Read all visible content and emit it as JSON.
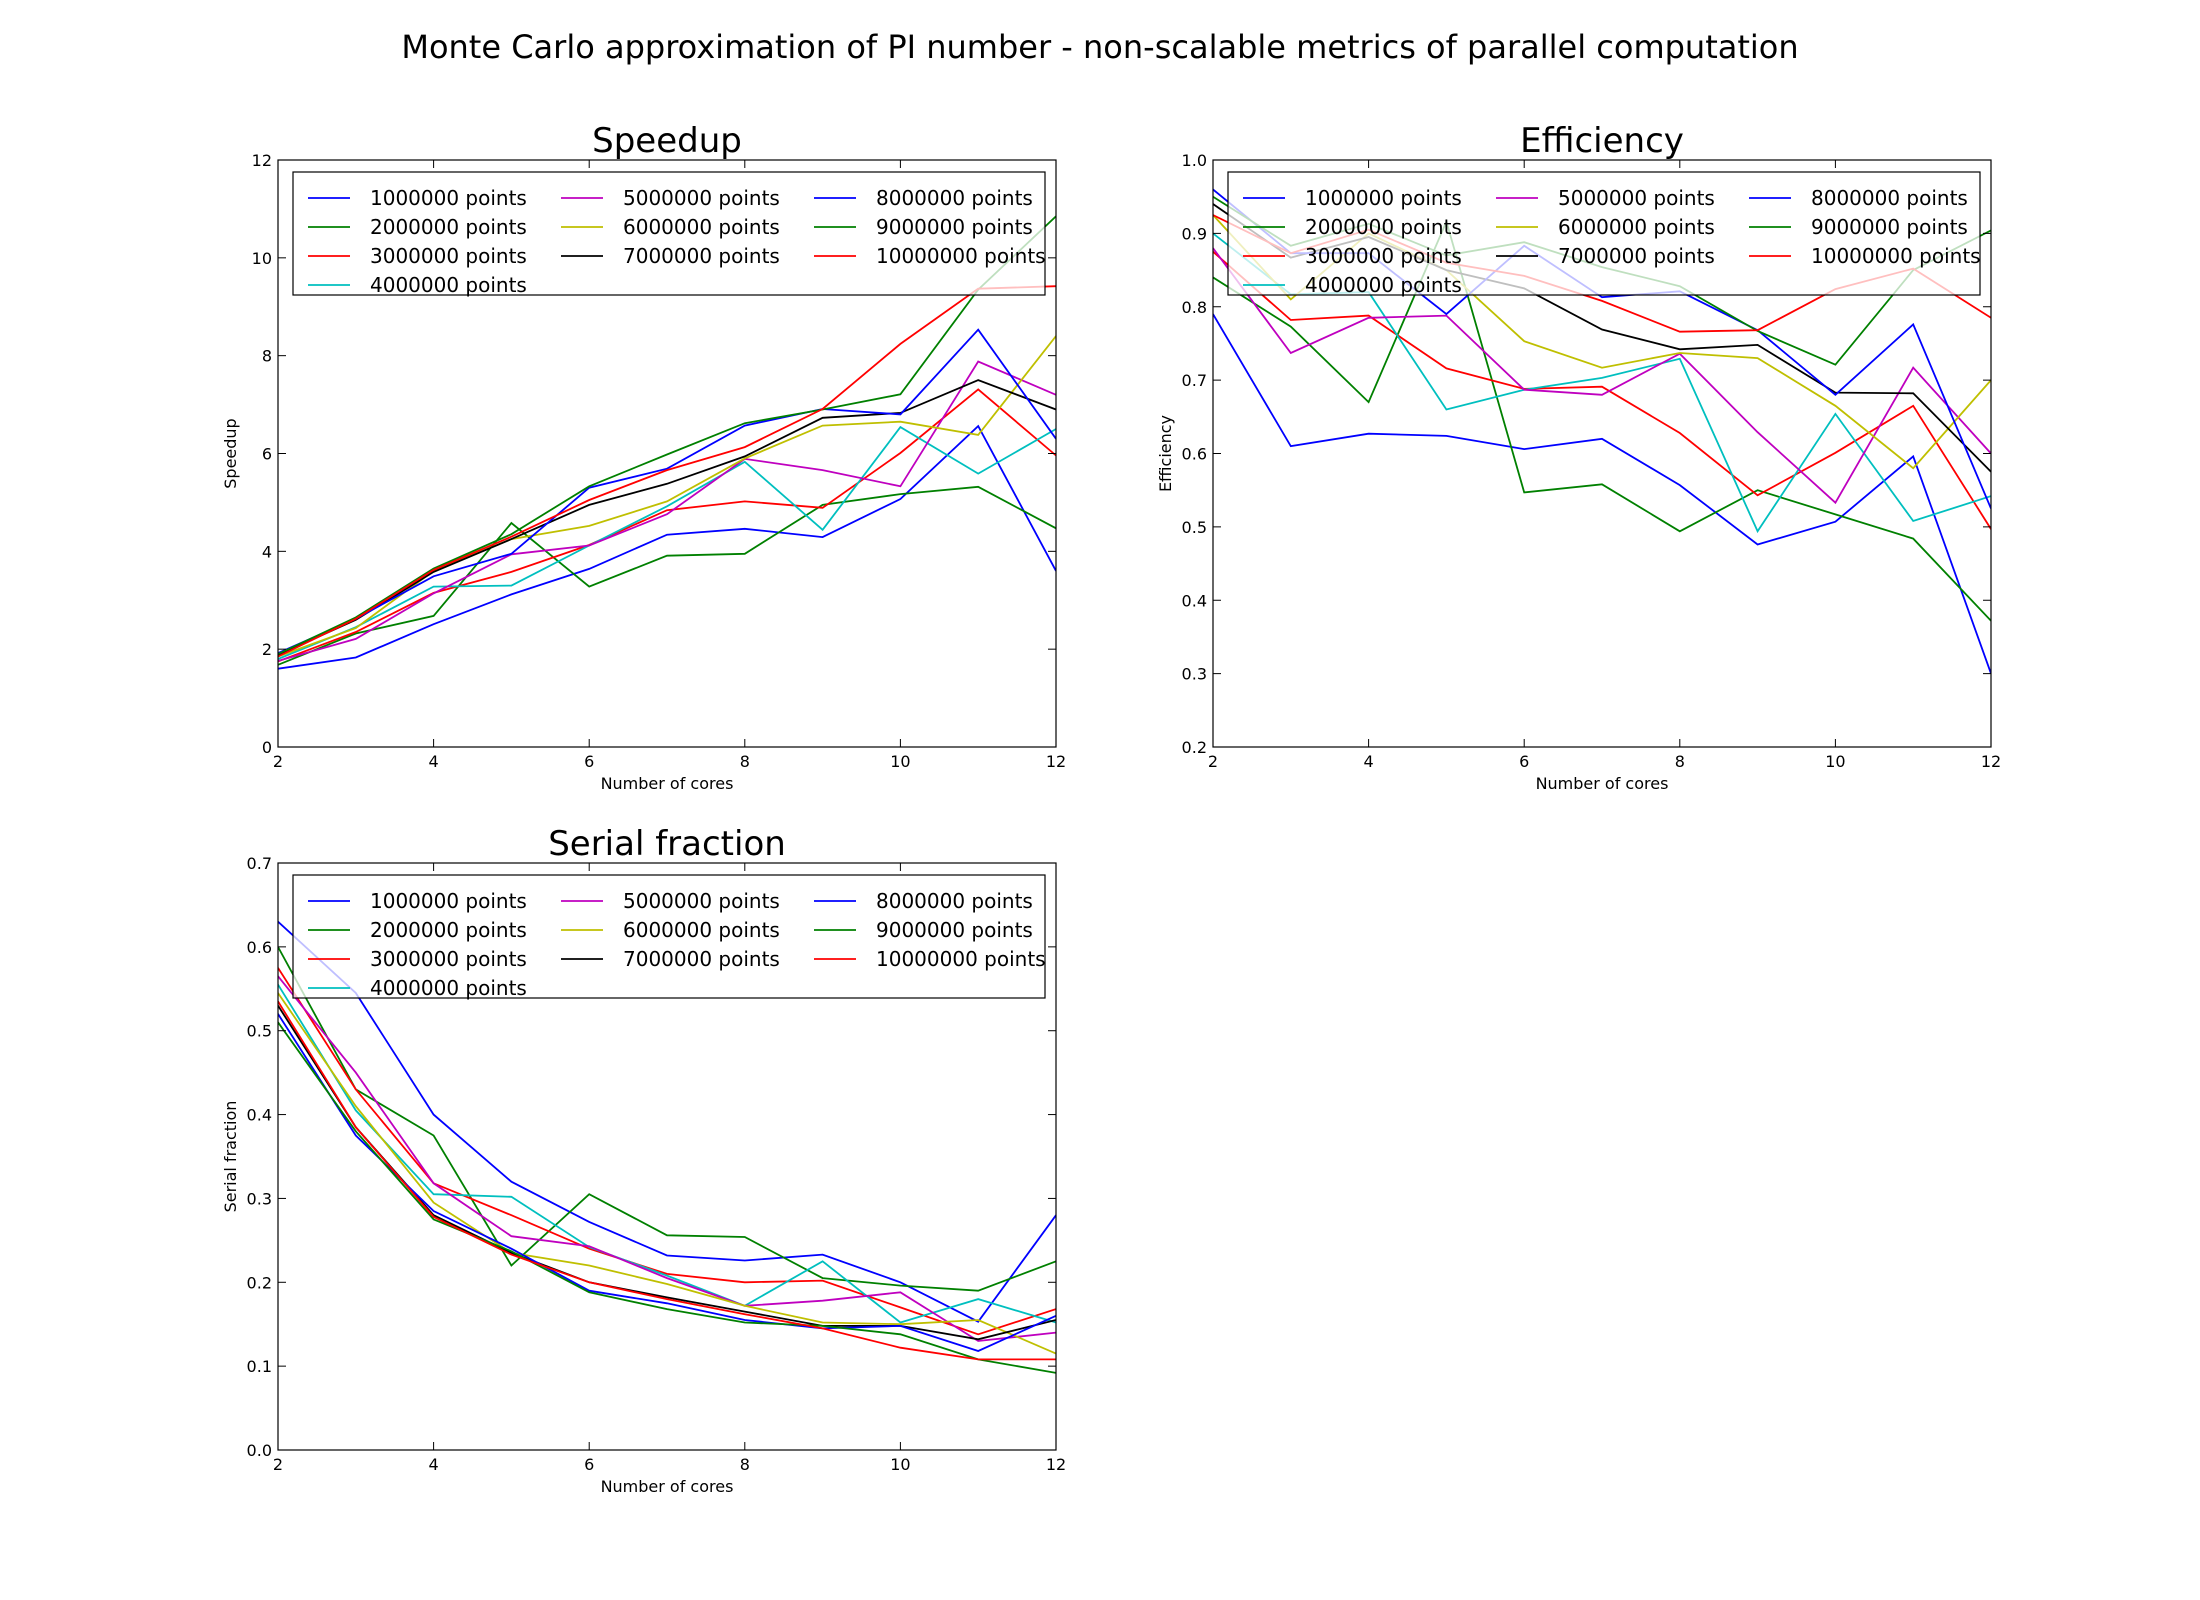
{
  "figure": {
    "suptitle": "Monte Carlo approximation of PI number - non-scalable metrics of parallel computation"
  },
  "series_colors": [
    "#0000ff",
    "#008000",
    "#ff0000",
    "#00bfbf",
    "#bf00bf",
    "#bfbf00",
    "#000000",
    "#0000ff",
    "#008000",
    "#ff0000"
  ],
  "chart_data": [
    {
      "type": "line",
      "title": "Speedup",
      "xlabel": "Number of cores",
      "ylabel": "Speedup",
      "xlim": [
        2,
        12
      ],
      "ylim": [
        0,
        12
      ],
      "xticks": [
        2,
        4,
        6,
        8,
        10,
        12
      ],
      "yticks": [
        0,
        2,
        4,
        6,
        8,
        10,
        12
      ],
      "ytick_labels": [
        "0",
        "2",
        "4",
        "6",
        "8",
        "10",
        "12"
      ],
      "grid": false,
      "legend_position": "top",
      "x": [
        2,
        3,
        4,
        5,
        6,
        7,
        8,
        9,
        10,
        11,
        12
      ],
      "series": [
        {
          "name": "1000000 points",
          "values": [
            1.6,
            1.83,
            2.51,
            3.12,
            3.64,
            4.34,
            4.46,
            4.29,
            5.07,
            6.56,
            3.6
          ]
        },
        {
          "name": "2000000 points",
          "values": [
            1.68,
            2.32,
            2.68,
            4.58,
            3.28,
            3.91,
            3.95,
            4.95,
            5.17,
            5.32,
            4.47
          ]
        },
        {
          "name": "3000000 points",
          "values": [
            1.75,
            2.35,
            3.15,
            3.58,
            4.13,
            4.84,
            5.02,
            4.89,
            6.01,
            7.31,
            5.96
          ]
        },
        {
          "name": "4000000 points",
          "values": [
            1.8,
            2.45,
            3.28,
            3.3,
            4.12,
            4.92,
            5.83,
            4.44,
            6.54,
            5.59,
            6.5
          ]
        },
        {
          "name": "5000000 points",
          "values": [
            1.76,
            2.21,
            3.14,
            3.94,
            4.12,
            4.76,
            5.89,
            5.66,
            5.33,
            7.88,
            7.2
          ]
        },
        {
          "name": "6000000 points",
          "values": [
            1.85,
            2.43,
            3.6,
            4.25,
            4.52,
            5.02,
            5.9,
            6.57,
            6.65,
            6.38,
            8.4
          ]
        },
        {
          "name": "7000000 points",
          "values": [
            1.88,
            2.6,
            3.58,
            4.25,
            4.95,
            5.38,
            5.94,
            6.73,
            6.83,
            7.5,
            6.9
          ]
        },
        {
          "name": "8000000 points",
          "values": [
            1.92,
            2.62,
            3.49,
            3.95,
            5.3,
            5.69,
            6.57,
            6.91,
            6.8,
            8.53,
            6.3
          ]
        },
        {
          "name": "9000000 points",
          "values": [
            1.9,
            2.65,
            3.65,
            4.35,
            5.33,
            5.98,
            6.62,
            6.9,
            7.21,
            9.35,
            10.85
          ]
        },
        {
          "name": "10000000 points",
          "values": [
            1.85,
            2.62,
            3.62,
            4.3,
            5.05,
            5.66,
            6.13,
            6.91,
            8.24,
            9.37,
            9.42
          ]
        }
      ]
    },
    {
      "type": "line",
      "title": "Efficiency",
      "xlabel": "Number of cores",
      "ylabel": "Efficiency",
      "xlim": [
        2,
        12
      ],
      "ylim": [
        0.2,
        1.0
      ],
      "xticks": [
        2,
        4,
        6,
        8,
        10,
        12
      ],
      "yticks": [
        0.2,
        0.3,
        0.4,
        0.5,
        0.6,
        0.7,
        0.8,
        0.9,
        1.0
      ],
      "ytick_labels": [
        "0.2",
        "0.3",
        "0.4",
        "0.5",
        "0.6",
        "0.7",
        "0.8",
        "0.9",
        "1.0"
      ],
      "grid": false,
      "legend_position": "top",
      "x": [
        2,
        3,
        4,
        5,
        6,
        7,
        8,
        9,
        10,
        11,
        12
      ],
      "series": [
        {
          "name": "1000000 points",
          "values": [
            0.79,
            0.61,
            0.627,
            0.624,
            0.606,
            0.62,
            0.557,
            0.476,
            0.507,
            0.596,
            0.3
          ]
        },
        {
          "name": "2000000 points",
          "values": [
            0.84,
            0.773,
            0.67,
            0.916,
            0.547,
            0.558,
            0.494,
            0.55,
            0.517,
            0.484,
            0.372
          ]
        },
        {
          "name": "3000000 points",
          "values": [
            0.875,
            0.782,
            0.788,
            0.716,
            0.688,
            0.691,
            0.628,
            0.543,
            0.601,
            0.665,
            0.497
          ]
        },
        {
          "name": "4000000 points",
          "values": [
            0.9,
            0.817,
            0.82,
            0.66,
            0.687,
            0.703,
            0.729,
            0.494,
            0.654,
            0.508,
            0.542
          ]
        },
        {
          "name": "5000000 points",
          "values": [
            0.88,
            0.737,
            0.785,
            0.788,
            0.687,
            0.68,
            0.736,
            0.629,
            0.533,
            0.717,
            0.6
          ]
        },
        {
          "name": "6000000 points",
          "values": [
            0.925,
            0.81,
            0.9,
            0.85,
            0.753,
            0.717,
            0.737,
            0.73,
            0.665,
            0.58,
            0.7
          ]
        },
        {
          "name": "7000000 points",
          "values": [
            0.94,
            0.867,
            0.895,
            0.85,
            0.825,
            0.769,
            0.742,
            0.748,
            0.683,
            0.682,
            0.575
          ]
        },
        {
          "name": "8000000 points",
          "values": [
            0.96,
            0.873,
            0.873,
            0.79,
            0.883,
            0.813,
            0.821,
            0.768,
            0.68,
            0.776,
            0.525
          ]
        },
        {
          "name": "9000000 points",
          "values": [
            0.95,
            0.883,
            0.913,
            0.87,
            0.888,
            0.854,
            0.828,
            0.767,
            0.721,
            0.85,
            0.904
          ]
        },
        {
          "name": "10000000 points",
          "values": [
            0.925,
            0.873,
            0.905,
            0.86,
            0.842,
            0.808,
            0.766,
            0.768,
            0.824,
            0.852,
            0.785
          ]
        }
      ]
    },
    {
      "type": "line",
      "title": "Serial fraction",
      "xlabel": "Number of cores",
      "ylabel": "Serial fraction",
      "xlim": [
        2,
        12
      ],
      "ylim": [
        0.0,
        0.7
      ],
      "xticks": [
        2,
        4,
        6,
        8,
        10,
        12
      ],
      "yticks": [
        0.0,
        0.1,
        0.2,
        0.3,
        0.4,
        0.5,
        0.6,
        0.7
      ],
      "ytick_labels": [
        "0.0",
        "0.1",
        "0.2",
        "0.3",
        "0.4",
        "0.5",
        "0.6",
        "0.7"
      ],
      "grid": false,
      "legend_position": "top",
      "x": [
        2,
        3,
        4,
        5,
        6,
        7,
        8,
        9,
        10,
        11,
        12
      ],
      "series": [
        {
          "name": "1000000 points",
          "values": [
            0.63,
            0.545,
            0.4,
            0.32,
            0.272,
            0.232,
            0.226,
            0.233,
            0.2,
            0.153,
            0.28
          ]
        },
        {
          "name": "2000000 points",
          "values": [
            0.6,
            0.43,
            0.375,
            0.22,
            0.305,
            0.256,
            0.254,
            0.205,
            0.196,
            0.19,
            0.225
          ]
        },
        {
          "name": "3000000 points",
          "values": [
            0.575,
            0.43,
            0.318,
            0.28,
            0.24,
            0.21,
            0.2,
            0.202,
            0.17,
            0.138,
            0.168
          ]
        },
        {
          "name": "4000000 points",
          "values": [
            0.555,
            0.405,
            0.305,
            0.302,
            0.242,
            0.208,
            0.172,
            0.225,
            0.152,
            0.18,
            0.152
          ]
        },
        {
          "name": "5000000 points",
          "values": [
            0.565,
            0.45,
            0.318,
            0.255,
            0.243,
            0.205,
            0.172,
            0.178,
            0.188,
            0.13,
            0.14
          ]
        },
        {
          "name": "6000000 points",
          "values": [
            0.545,
            0.41,
            0.295,
            0.235,
            0.22,
            0.198,
            0.172,
            0.152,
            0.15,
            0.155,
            0.115
          ]
        },
        {
          "name": "7000000 points",
          "values": [
            0.53,
            0.385,
            0.28,
            0.235,
            0.2,
            0.182,
            0.165,
            0.148,
            0.148,
            0.132,
            0.155
          ]
        },
        {
          "name": "8000000 points",
          "values": [
            0.52,
            0.375,
            0.285,
            0.24,
            0.19,
            0.175,
            0.155,
            0.145,
            0.148,
            0.118,
            0.16
          ]
        },
        {
          "name": "9000000 points",
          "values": [
            0.51,
            0.38,
            0.275,
            0.237,
            0.188,
            0.168,
            0.152,
            0.148,
            0.138,
            0.108,
            0.092
          ]
        },
        {
          "name": "10000000 points",
          "values": [
            0.535,
            0.385,
            0.278,
            0.233,
            0.2,
            0.18,
            0.162,
            0.145,
            0.122,
            0.108,
            0.108
          ]
        }
      ]
    }
  ]
}
